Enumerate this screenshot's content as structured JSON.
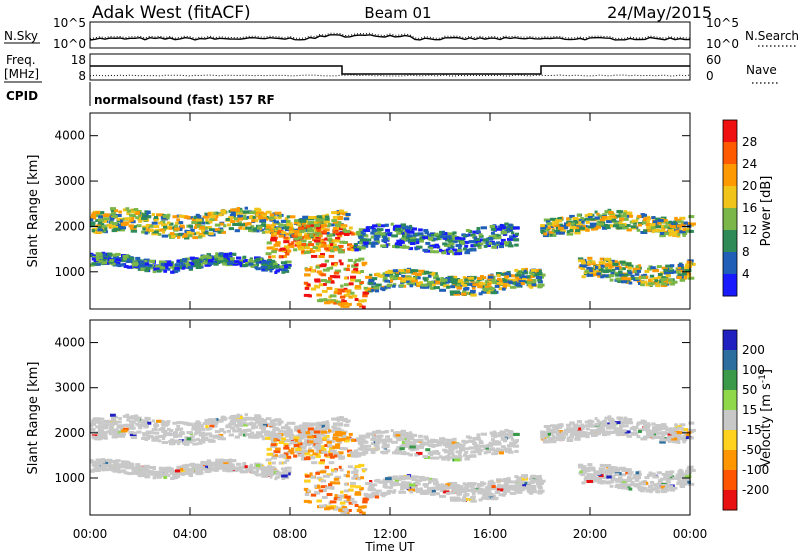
{
  "header": {
    "station": "Adak West (fitACF)",
    "beam": "Beam 01",
    "date": "24/May/2015"
  },
  "meta_panels": {
    "nsky_label": "N.Sky",
    "nsky_ticks": [
      "10^5",
      "10^0"
    ],
    "nsearch_label": "N.Search",
    "nsearch_ticks": [
      "10^5",
      "10^0"
    ],
    "freq_label_1": "Freq.",
    "freq_label_2": "[MHz]",
    "freq_ticks": [
      "18",
      "8"
    ],
    "nave_label": "Nave",
    "nave_ticks": [
      "60",
      "0"
    ],
    "cpid_label": "CPID",
    "cpid_value": "normalsound (fast) 157 RF"
  },
  "chart_data": [
    {
      "type": "heatmap",
      "panel": "power",
      "ylabel": "Slant Range [km]",
      "xlabel": "",
      "ylim": [
        180,
        4500
      ],
      "yticks": [
        "1000",
        "2000",
        "3000",
        "4000"
      ],
      "colorbar": {
        "label": "Power [dB]",
        "ticks": [
          "4",
          "8",
          "12",
          "16",
          "20",
          "24",
          "28"
        ],
        "colors": [
          "#1a1aff",
          "#1f5fb8",
          "#2e8b57",
          "#7ab648",
          "#f0c419",
          "#ff9900",
          "#ff5a00",
          "#f01010"
        ]
      },
      "bands": [
        {
          "range_km": [
            1850,
            2350
          ],
          "time_h": [
            0,
            10.3
          ],
          "level": "medium"
        },
        {
          "range_km": [
            1100,
            1350
          ],
          "time_h": [
            0,
            7.8
          ],
          "level": "low"
        },
        {
          "range_km": [
            1400,
            2000
          ],
          "time_h": [
            7.0,
            10.5
          ],
          "level": "high"
        },
        {
          "range_km": [
            300,
            1400
          ],
          "time_h": [
            8.5,
            11.0
          ],
          "level": "high"
        },
        {
          "range_km": [
            600,
            1000
          ],
          "time_h": [
            11.0,
            18.0
          ],
          "level": "medium"
        },
        {
          "range_km": [
            1500,
            2000
          ],
          "time_h": [
            10.5,
            17.0
          ],
          "level": "low"
        },
        {
          "range_km": [
            1900,
            2300
          ],
          "time_h": [
            18.0,
            24.0
          ],
          "level": "medium"
        },
        {
          "range_km": [
            800,
            1250
          ],
          "time_h": [
            19.5,
            24.0
          ],
          "level": "medium"
        }
      ]
    },
    {
      "type": "heatmap",
      "panel": "velocity",
      "ylabel": "Slant Range [km]",
      "xlabel": "Time UT",
      "ylim": [
        180,
        4500
      ],
      "yticks": [
        "1000",
        "2000",
        "3000",
        "4000"
      ],
      "xticks": [
        "00:00",
        "04:00",
        "08:00",
        "12:00",
        "16:00",
        "20:00",
        "00:00"
      ],
      "colorbar": {
        "label_main": "Velocity [m s",
        "label_sup": "-1",
        "label_end": "]",
        "ticks": [
          "200",
          "100",
          "50",
          "15",
          "-15",
          "-50",
          "-100",
          "-200"
        ],
        "colors": [
          "#2020c0",
          "#2c6e9e",
          "#3a9a4a",
          "#8fd84a",
          "#c8c8c8",
          "#ffd21f",
          "#ff9500",
          "#ff5500",
          "#e81010"
        ]
      }
    }
  ]
}
